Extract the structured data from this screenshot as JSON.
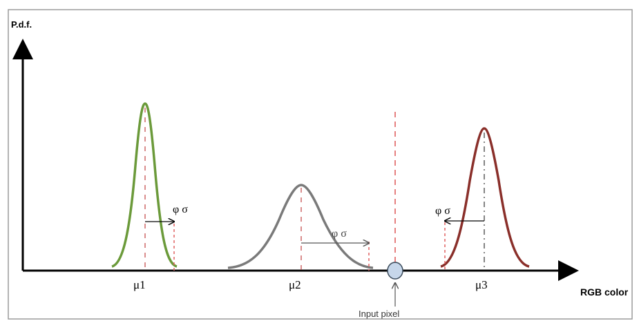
{
  "diagram": {
    "y_axis_label": "P.d.f.",
    "x_axis_label": "RGB color",
    "distributions": [
      {
        "mean_label": "μ1",
        "spread_label": "φ σ",
        "color": "#6b9a3a"
      },
      {
        "mean_label": "μ2",
        "spread_label": "φ σ",
        "color": "#7a7a7a"
      },
      {
        "mean_label": "μ3",
        "spread_label": "φ σ",
        "color": "#8a2f2a"
      }
    ],
    "input_pixel_label": "Input pixel",
    "colors": {
      "axis": "#000000",
      "threshold_line": "#e06060",
      "input_pixel_fill": "#c7d7ea",
      "input_pixel_stroke": "#3a4a5a",
      "frame_border": "#9a9a9a"
    }
  }
}
